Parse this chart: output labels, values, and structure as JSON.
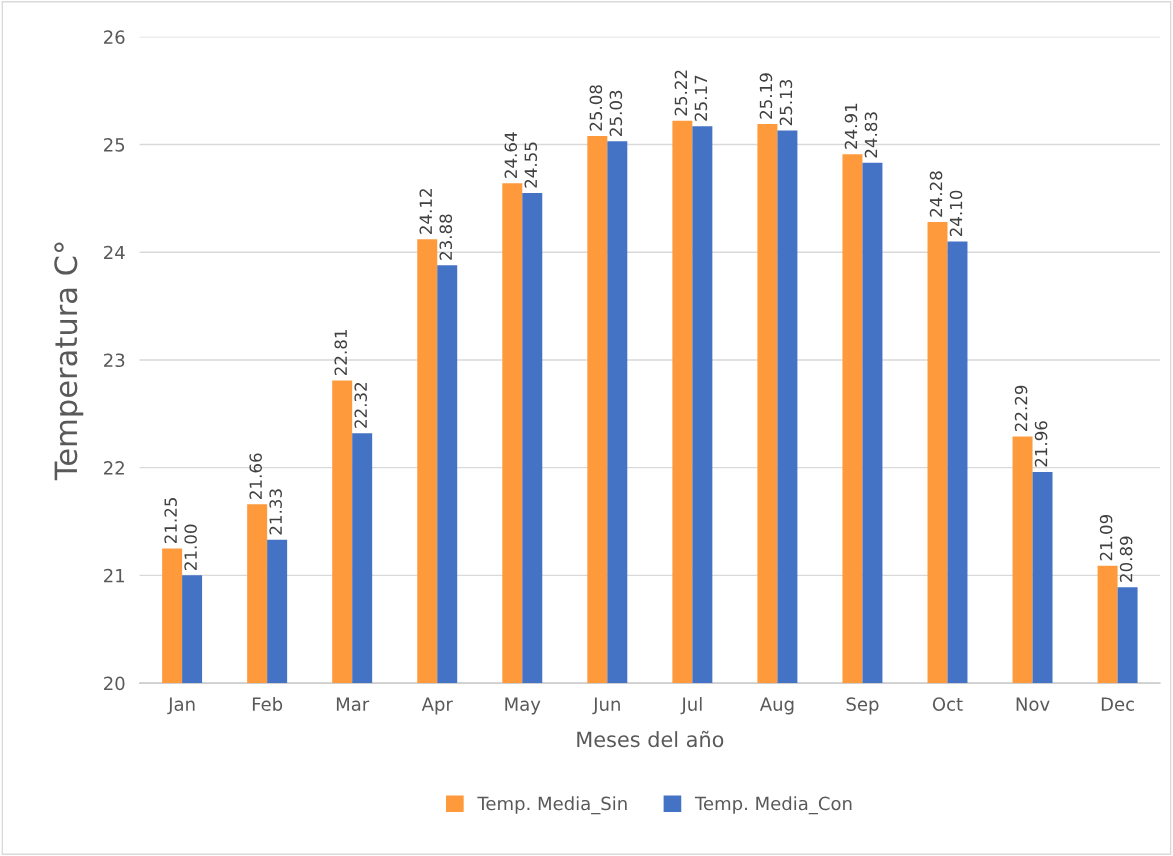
{
  "chart_data": {
    "type": "bar",
    "xlabel": "Meses del año",
    "ylabel": "Temperatura C°",
    "categories": [
      "Jan",
      "Feb",
      "Mar",
      "Apr",
      "May",
      "Jun",
      "Jul",
      "Aug",
      "Sep",
      "Oct",
      "Nov",
      "Dec"
    ],
    "series": [
      {
        "name": "Temp. Media_Sin",
        "color": "#ff9a3c",
        "values": [
          21.25,
          21.66,
          22.81,
          24.12,
          24.64,
          25.08,
          25.22,
          25.19,
          24.91,
          24.28,
          22.29,
          21.09
        ],
        "value_labels": [
          "21.25",
          "21.66",
          "22.81",
          "24.12",
          "24.64",
          "25.08",
          "25.22",
          "25.19",
          "24.91",
          "24.28",
          "22.29",
          "21.09"
        ]
      },
      {
        "name": "Temp. Media_Con",
        "color": "#4472c4",
        "values": [
          21.0,
          21.33,
          22.32,
          23.88,
          24.55,
          25.03,
          25.17,
          25.13,
          24.83,
          24.1,
          21.96,
          20.89
        ],
        "value_labels": [
          "21.00",
          "21.33",
          "22.32",
          "23.88",
          "24.55",
          "25.03",
          "25.17",
          "25.13",
          "24.83",
          "24.10",
          "21.96",
          "20.89"
        ]
      }
    ],
    "ylim": [
      20,
      26
    ],
    "yticks": [
      20,
      21,
      22,
      23,
      24,
      25,
      26
    ],
    "grid": "y",
    "legend": "bottom"
  }
}
